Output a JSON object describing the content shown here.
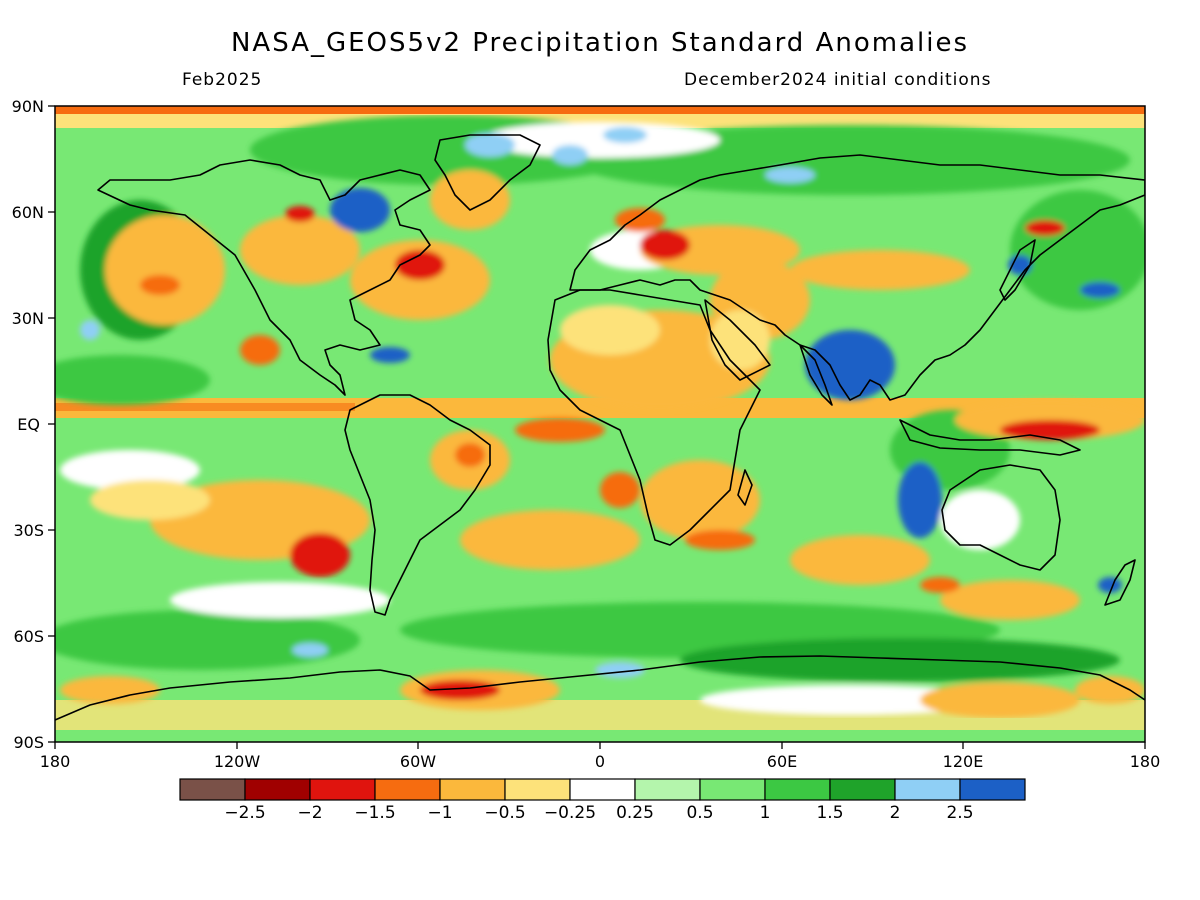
{
  "header": {
    "title": "NASA_GEOS5v2 Precipitation Standard Anomalies",
    "valid_month": "Feb2025",
    "init_conditions": "December2024 initial conditions"
  },
  "axes": {
    "latitude_labels": [
      "90N",
      "60N",
      "30N",
      "EQ",
      "30S",
      "60S",
      "90S"
    ],
    "longitude_labels": [
      "180",
      "120W",
      "60W",
      "0",
      "60E",
      "120E",
      "180"
    ]
  },
  "colorbar": {
    "colors": [
      "#7a5148",
      "#a00000",
      "#e0140e",
      "#f66c10",
      "#fbb83c",
      "#fde27a",
      "#ffffff",
      "#b4f5ac",
      "#78e874",
      "#3cc843",
      "#1fa32a",
      "#8fcff5",
      "#1c60c6"
    ],
    "labels": [
      "−2.5",
      "−2",
      "−1.5",
      "−1",
      "−0.5",
      "−0.25",
      "0.25",
      "0.5",
      "1",
      "1.5",
      "2",
      "2.5"
    ]
  },
  "map": {
    "projection": "equirectangular",
    "lon_range": [
      -180,
      180
    ],
    "lat_range": [
      -90,
      90
    ],
    "land_outline_color": "#000000"
  }
}
